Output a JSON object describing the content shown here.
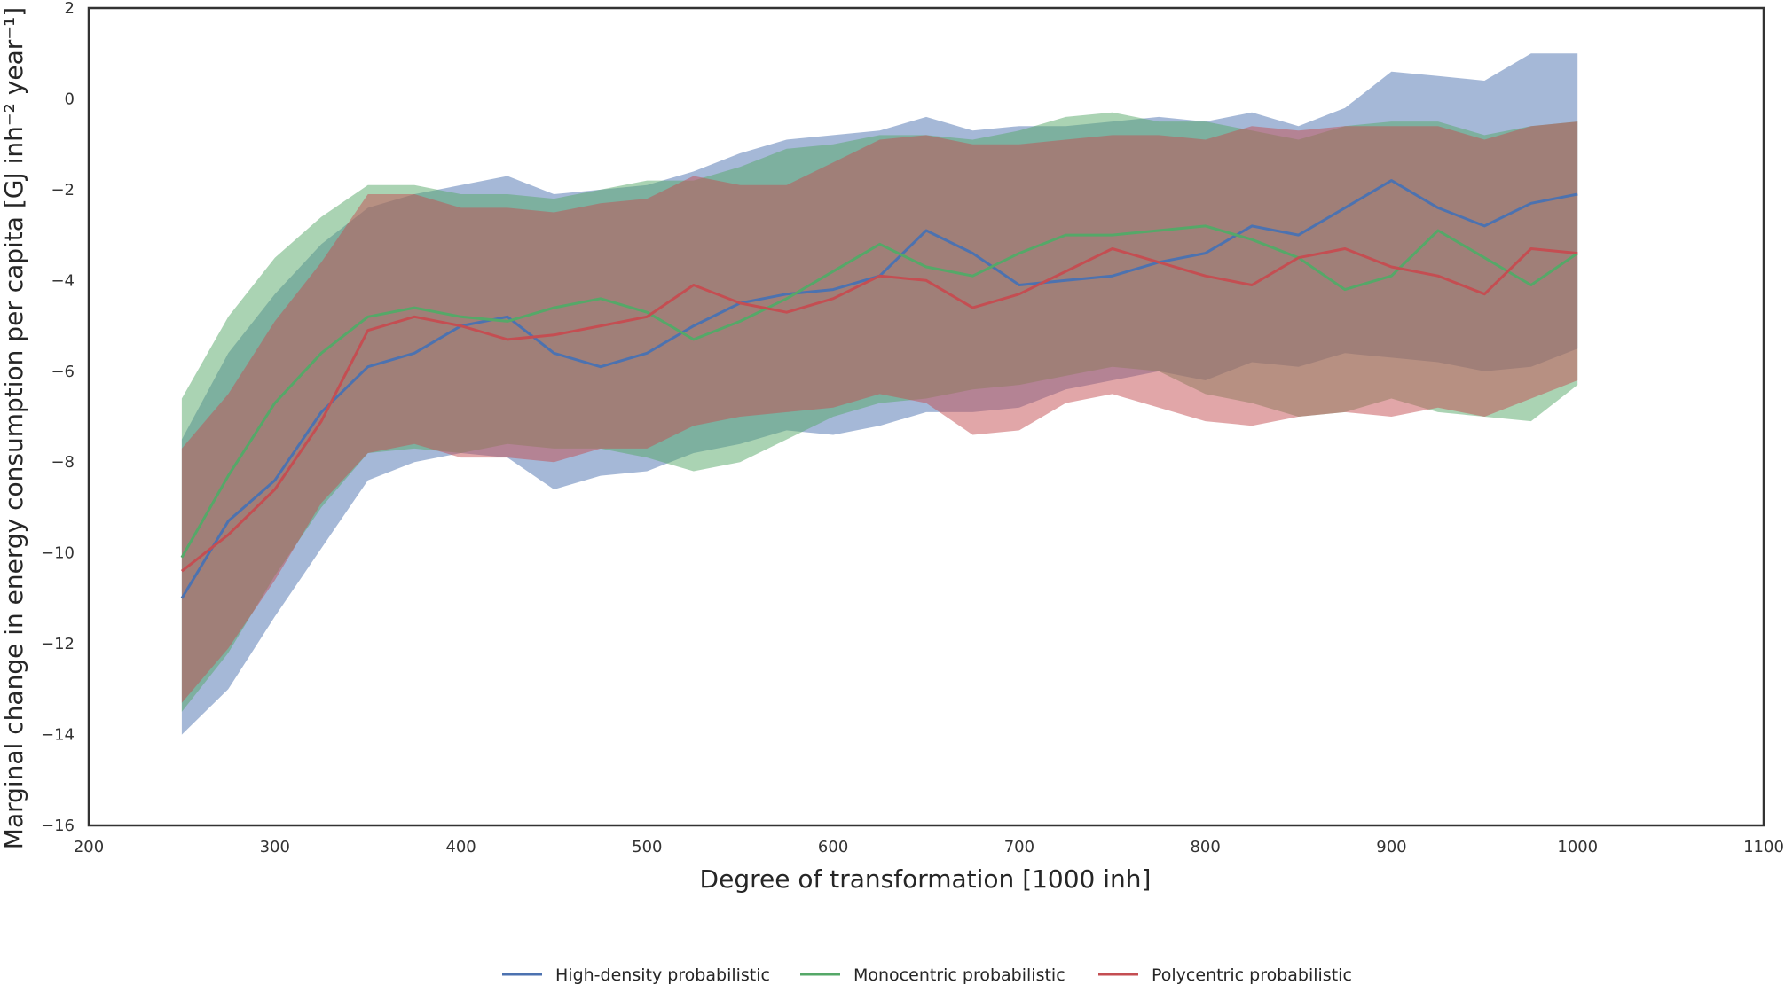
{
  "chart_data": {
    "type": "area",
    "xlabel": "Degree of transformation [1000 inh]",
    "ylabel": "Marginal change in energy consumption per capita [GJ inh⁻² year⁻¹]",
    "xlim": [
      200,
      1100
    ],
    "ylim": [
      -16,
      2
    ],
    "x_ticks": [
      200,
      300,
      400,
      500,
      600,
      700,
      800,
      900,
      1000,
      1100
    ],
    "y_ticks": [
      2,
      0,
      -2,
      -4,
      -6,
      -8,
      -10,
      -12,
      -14,
      -16
    ],
    "grid": false,
    "legend_position": "bottom-center",
    "x": [
      250,
      275,
      300,
      325,
      350,
      375,
      400,
      425,
      450,
      475,
      500,
      525,
      550,
      575,
      600,
      625,
      650,
      675,
      700,
      725,
      750,
      775,
      800,
      825,
      850,
      875,
      900,
      925,
      950,
      975,
      1000
    ],
    "series": [
      {
        "name": "High-density probabilistic",
        "color": "#4c72b0",
        "mean": [
          -11.0,
          -9.3,
          -8.4,
          -6.9,
          -5.9,
          -5.6,
          -5.0,
          -4.8,
          -5.6,
          -5.9,
          -5.6,
          -5.0,
          -4.5,
          -4.3,
          -4.2,
          -3.9,
          -2.9,
          -3.4,
          -4.1,
          -4.0,
          -3.9,
          -3.6,
          -3.4,
          -2.8,
          -3.0,
          -2.4,
          -1.8,
          -2.4,
          -2.8,
          -2.3,
          -2.1
        ],
        "upper": [
          -7.5,
          -5.6,
          -4.3,
          -3.2,
          -2.4,
          -2.1,
          -1.9,
          -1.7,
          -2.1,
          -2.0,
          -1.9,
          -1.6,
          -1.2,
          -0.9,
          -0.8,
          -0.7,
          -0.4,
          -0.7,
          -0.6,
          -0.6,
          -0.5,
          -0.4,
          -0.5,
          -0.3,
          -0.6,
          -0.2,
          0.6,
          0.5,
          0.4,
          1.0,
          1.0
        ],
        "lower": [
          -14.0,
          -13.0,
          -11.4,
          -9.9,
          -8.4,
          -8.0,
          -7.8,
          -7.9,
          -8.6,
          -8.3,
          -8.2,
          -7.8,
          -7.6,
          -7.3,
          -7.4,
          -7.2,
          -6.9,
          -6.9,
          -6.8,
          -6.4,
          -6.2,
          -6.0,
          -6.2,
          -5.8,
          -5.9,
          -5.6,
          -5.7,
          -5.8,
          -6.0,
          -5.9,
          -5.5
        ]
      },
      {
        "name": "Monocentric probabilistic",
        "color": "#55a868",
        "mean": [
          -10.1,
          -8.3,
          -6.7,
          -5.6,
          -4.8,
          -4.6,
          -4.8,
          -4.9,
          -4.6,
          -4.4,
          -4.7,
          -5.3,
          -4.9,
          -4.4,
          -3.8,
          -3.2,
          -3.7,
          -3.9,
          -3.4,
          -3.0,
          -3.0,
          -2.9,
          -2.8,
          -3.1,
          -3.5,
          -4.2,
          -3.9,
          -2.9,
          -3.5,
          -4.1,
          -3.4
        ],
        "upper": [
          -6.6,
          -4.8,
          -3.5,
          -2.6,
          -1.9,
          -1.9,
          -2.1,
          -2.1,
          -2.2,
          -2.0,
          -1.8,
          -1.8,
          -1.5,
          -1.1,
          -1.0,
          -0.8,
          -0.8,
          -0.9,
          -0.7,
          -0.4,
          -0.3,
          -0.5,
          -0.5,
          -0.7,
          -0.9,
          -0.6,
          -0.5,
          -0.5,
          -0.8,
          -0.6,
          -0.5
        ],
        "lower": [
          -13.5,
          -12.2,
          -10.5,
          -9.0,
          -7.8,
          -7.7,
          -7.8,
          -7.6,
          -7.7,
          -7.7,
          -7.9,
          -8.2,
          -8.0,
          -7.5,
          -7.0,
          -6.7,
          -6.6,
          -6.4,
          -6.3,
          -6.1,
          -5.9,
          -6.0,
          -6.5,
          -6.7,
          -7.0,
          -6.9,
          -6.6,
          -6.9,
          -7.0,
          -7.1,
          -6.3
        ]
      },
      {
        "name": "Polycentric probabilistic",
        "color": "#c44e52",
        "mean": [
          -10.4,
          -9.6,
          -8.6,
          -7.1,
          -5.1,
          -4.8,
          -5.0,
          -5.3,
          -5.2,
          -5.0,
          -4.8,
          -4.1,
          -4.5,
          -4.7,
          -4.4,
          -3.9,
          -4.0,
          -4.6,
          -4.3,
          -3.8,
          -3.3,
          -3.6,
          -3.9,
          -4.1,
          -3.5,
          -3.3,
          -3.7,
          -3.9,
          -4.3,
          -3.3,
          -3.4
        ],
        "upper": [
          -7.7,
          -6.5,
          -4.9,
          -3.6,
          -2.1,
          -2.1,
          -2.4,
          -2.4,
          -2.5,
          -2.3,
          -2.2,
          -1.7,
          -1.9,
          -1.9,
          -1.4,
          -0.9,
          -0.8,
          -1.0,
          -1.0,
          -0.9,
          -0.8,
          -0.8,
          -0.9,
          -0.6,
          -0.7,
          -0.6,
          -0.6,
          -0.6,
          -0.9,
          -0.6,
          -0.5
        ],
        "lower": [
          -13.3,
          -12.1,
          -10.6,
          -8.9,
          -7.8,
          -7.6,
          -7.9,
          -7.9,
          -8.0,
          -7.7,
          -7.7,
          -7.2,
          -7.0,
          -6.9,
          -6.8,
          -6.5,
          -6.7,
          -7.4,
          -7.3,
          -6.7,
          -6.5,
          -6.8,
          -7.1,
          -7.2,
          -7.0,
          -6.9,
          -7.0,
          -6.8,
          -7.0,
          -6.6,
          -6.2
        ]
      }
    ]
  }
}
